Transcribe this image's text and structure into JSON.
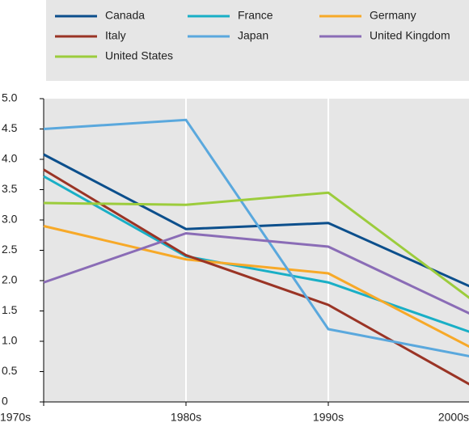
{
  "chart_data": {
    "type": "line",
    "categories": [
      "1970s",
      "1980s",
      "1990s",
      "2000s"
    ],
    "series": [
      {
        "name": "Canada",
        "color": "#0c4f8c",
        "values": [
          4.08,
          2.85,
          2.95,
          1.9
        ]
      },
      {
        "name": "France",
        "color": "#19afc6",
        "values": [
          3.72,
          2.4,
          1.97,
          1.15
        ]
      },
      {
        "name": "Germany",
        "color": "#f7a928",
        "values": [
          2.9,
          2.35,
          2.12,
          0.9
        ]
      },
      {
        "name": "Italy",
        "color": "#9a3425",
        "values": [
          3.83,
          2.42,
          1.6,
          0.28
        ]
      },
      {
        "name": "Japan",
        "color": "#5aa8dd",
        "values": [
          4.5,
          4.65,
          1.2,
          0.75
        ]
      },
      {
        "name": "United Kingdom",
        "color": "#8a6cb6",
        "values": [
          1.97,
          2.78,
          2.56,
          1.45
        ]
      },
      {
        "name": "United States",
        "color": "#9ccc3c",
        "values": [
          3.28,
          3.25,
          3.45,
          1.7
        ]
      }
    ],
    "ylim": [
      0,
      5
    ],
    "yticks": [
      0,
      0.5,
      {
        "value": 1,
        "label": "1.0"
      },
      1.5,
      {
        "value": 2,
        "label": "2.0"
      },
      2.5,
      {
        "value": 3,
        "label": "3.0"
      },
      3.5,
      {
        "value": 4,
        "label": "4.0"
      },
      4.5,
      {
        "value": 5,
        "label": "5.0"
      }
    ],
    "grid": true,
    "legend": "top"
  }
}
